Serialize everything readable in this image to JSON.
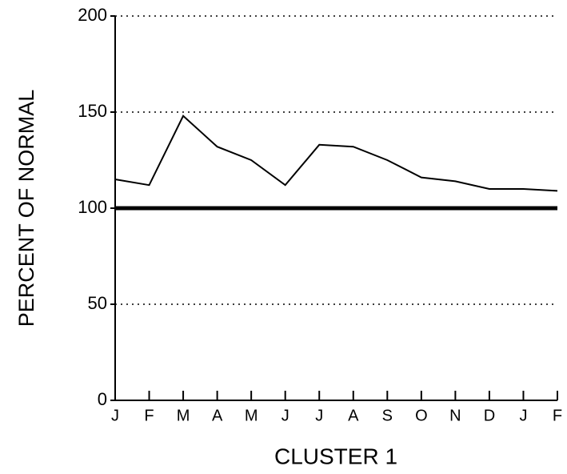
{
  "chart_data": {
    "type": "line",
    "x_label": "CLUSTER 1",
    "y_label": "PERCENT OF NORMAL",
    "categories": [
      "J",
      "F",
      "M",
      "A",
      "M",
      "J",
      "J",
      "A",
      "S",
      "O",
      "N",
      "D",
      "J",
      "F"
    ],
    "values": [
      115,
      112,
      148,
      132,
      125,
      112,
      133,
      132,
      125,
      116,
      114,
      110,
      110,
      109
    ],
    "color": "#000000",
    "ylim": [
      0,
      200
    ],
    "yticks": [
      0,
      50,
      100,
      150,
      200
    ],
    "grid": true,
    "reference_line": 100
  }
}
